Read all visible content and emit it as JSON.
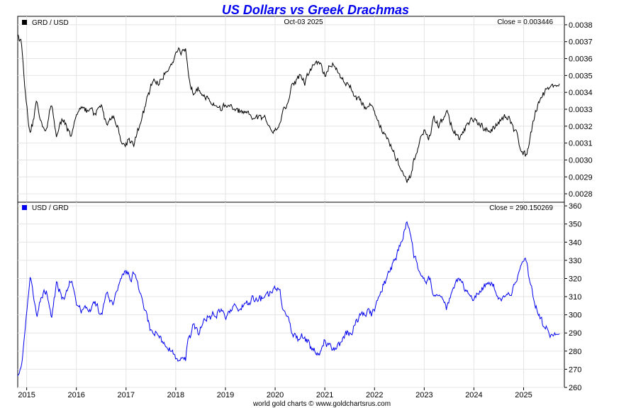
{
  "chart_data": [
    {
      "type": "line",
      "title": "US Dollars vs Greek Drachmas",
      "legend": "GRD / USD",
      "date_label": "Oct-03  2025",
      "close_label": "Close = 0.003446",
      "ylim": [
        0.00275,
        0.00385
      ],
      "yticks": [
        "0.0038",
        "0.0037",
        "0.0036",
        "0.0035",
        "0.0034",
        "0.0033",
        "0.0032",
        "0.0031",
        "0.0030",
        "0.0029",
        "0.0028"
      ],
      "ytick_values": [
        0.0038,
        0.0037,
        0.0036,
        0.0035,
        0.0034,
        0.0033,
        0.0032,
        0.0031,
        0.003,
        0.0029,
        0.0028
      ],
      "color": "#000000",
      "series": [
        {
          "name": "GRD / USD",
          "x": [
            2014.82,
            2014.9,
            2014.96,
            2015.0,
            2015.07,
            2015.12,
            2015.2,
            2015.3,
            2015.4,
            2015.5,
            2015.6,
            2015.75,
            2015.9,
            2016.0,
            2016.1,
            2016.2,
            2016.3,
            2016.35,
            2016.5,
            2016.6,
            2016.75,
            2016.85,
            2016.92,
            2016.97,
            2017.05,
            2017.15,
            2017.3,
            2017.4,
            2017.55,
            2017.65,
            2017.8,
            2017.95,
            2018.05,
            2018.1,
            2018.2,
            2018.25,
            2018.35,
            2018.45,
            2018.6,
            2018.8,
            2018.9,
            2019.0,
            2019.2,
            2019.35,
            2019.5,
            2019.65,
            2019.8,
            2019.95,
            2020.1,
            2020.15,
            2020.25,
            2020.35,
            2020.5,
            2020.6,
            2020.75,
            2020.9,
            2021.0,
            2021.15,
            2021.25,
            2021.4,
            2021.55,
            2021.7,
            2021.85,
            2021.95,
            2022.05,
            2022.15,
            2022.3,
            2022.45,
            2022.55,
            2022.65,
            2022.75,
            2022.8,
            2022.9,
            2023.0,
            2023.1,
            2023.2,
            2023.3,
            2023.45,
            2023.55,
            2023.7,
            2023.85,
            2024.0,
            2024.15,
            2024.3,
            2024.45,
            2024.55,
            2024.7,
            2024.85,
            2024.95,
            2025.05,
            2025.15,
            2025.3,
            2025.45,
            2025.6,
            2025.72
          ],
          "values": [
            0.00375,
            0.00368,
            0.00345,
            0.0033,
            0.00313,
            0.0032,
            0.00335,
            0.00322,
            0.00318,
            0.00333,
            0.00315,
            0.00325,
            0.00312,
            0.00326,
            0.00334,
            0.00328,
            0.0033,
            0.00325,
            0.00333,
            0.00322,
            0.00326,
            0.00318,
            0.0031,
            0.00308,
            0.00313,
            0.0031,
            0.00322,
            0.00333,
            0.00348,
            0.00345,
            0.00352,
            0.0036,
            0.00366,
            0.00361,
            0.00364,
            0.0035,
            0.0034,
            0.00345,
            0.00336,
            0.00333,
            0.0033,
            0.00333,
            0.00329,
            0.00328,
            0.00325,
            0.00325,
            0.00324,
            0.00318,
            0.00321,
            0.0033,
            0.00333,
            0.00345,
            0.0035,
            0.00346,
            0.00356,
            0.00358,
            0.0035,
            0.00357,
            0.00353,
            0.00346,
            0.00342,
            0.00335,
            0.00331,
            0.00333,
            0.00325,
            0.00318,
            0.0031,
            0.003,
            0.00294,
            0.00285,
            0.00292,
            0.003,
            0.0031,
            0.00317,
            0.00313,
            0.00324,
            0.0032,
            0.00329,
            0.0032,
            0.00312,
            0.0032,
            0.00324,
            0.00319,
            0.00316,
            0.00321,
            0.00326,
            0.00324,
            0.00316,
            0.00307,
            0.00302,
            0.00318,
            0.00335,
            0.00342,
            0.00344,
            0.00345
          ]
        }
      ]
    },
    {
      "type": "line",
      "legend": "USD / GRD",
      "close_label": "Close = 290.150269",
      "ylim": [
        260,
        362
      ],
      "yticks": [
        "360",
        "350",
        "340",
        "330",
        "320",
        "310",
        "300",
        "290",
        "280",
        "270",
        "260"
      ],
      "ytick_values": [
        360,
        350,
        340,
        330,
        320,
        310,
        300,
        290,
        280,
        270,
        260
      ],
      "color": "#0000ee",
      "series": [
        {
          "name": "USD / GRD",
          "x": [
            2014.82,
            2014.9,
            2014.96,
            2015.0,
            2015.07,
            2015.12,
            2015.2,
            2015.3,
            2015.4,
            2015.5,
            2015.6,
            2015.75,
            2015.9,
            2016.0,
            2016.1,
            2016.2,
            2016.3,
            2016.35,
            2016.5,
            2016.6,
            2016.75,
            2016.85,
            2016.92,
            2016.97,
            2017.05,
            2017.15,
            2017.3,
            2017.4,
            2017.55,
            2017.65,
            2017.8,
            2017.95,
            2018.05,
            2018.1,
            2018.2,
            2018.25,
            2018.35,
            2018.45,
            2018.6,
            2018.8,
            2018.9,
            2019.0,
            2019.2,
            2019.35,
            2019.5,
            2019.65,
            2019.8,
            2019.95,
            2020.1,
            2020.15,
            2020.25,
            2020.35,
            2020.5,
            2020.6,
            2020.75,
            2020.9,
            2021.0,
            2021.15,
            2021.25,
            2021.4,
            2021.55,
            2021.7,
            2021.85,
            2021.95,
            2022.05,
            2022.15,
            2022.3,
            2022.45,
            2022.55,
            2022.65,
            2022.75,
            2022.8,
            2022.9,
            2023.0,
            2023.1,
            2023.2,
            2023.3,
            2023.45,
            2023.55,
            2023.7,
            2023.85,
            2024.0,
            2024.15,
            2024.3,
            2024.45,
            2024.55,
            2024.7,
            2024.85,
            2024.95,
            2025.05,
            2025.15,
            2025.3,
            2025.45,
            2025.6,
            2025.72
          ],
          "values": [
            267,
            272,
            290,
            303,
            320,
            313,
            299,
            311,
            315,
            300,
            317,
            308,
            320,
            307,
            300,
            305,
            303,
            308,
            300,
            311,
            307,
            315,
            323,
            325,
            320,
            322,
            311,
            300,
            287,
            290,
            284,
            278,
            273,
            277,
            275,
            286,
            294,
            290,
            298,
            300,
            303,
            300,
            304,
            305,
            308,
            308,
            309,
            314,
            312,
            303,
            300,
            290,
            286,
            289,
            281,
            279,
            286,
            280,
            283,
            289,
            292,
            299,
            302,
            300,
            308,
            315,
            323,
            334,
            340,
            351,
            342,
            333,
            323,
            316,
            320,
            309,
            313,
            304,
            313,
            321,
            313,
            309,
            314,
            317,
            312,
            307,
            309,
            317,
            326,
            331,
            315,
            299,
            292,
            290,
            290
          ]
        }
      ]
    }
  ],
  "x_axis": {
    "labels": [
      "2015",
      "2016",
      "2017",
      "2018",
      "2019",
      "2020",
      "2021",
      "2022",
      "2023",
      "2024",
      "2025"
    ],
    "years": [
      2015,
      2016,
      2017,
      2018,
      2019,
      2020,
      2021,
      2022,
      2023,
      2024,
      2025
    ],
    "range": [
      2014.82,
      2025.82
    ]
  },
  "footer": "world gold charts © www.goldchartsrus.com"
}
